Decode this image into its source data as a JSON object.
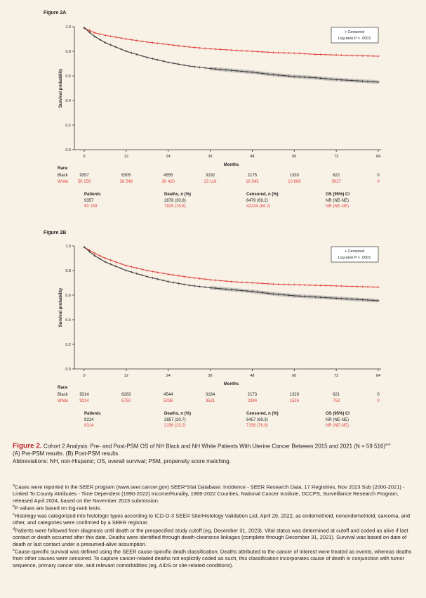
{
  "colors": {
    "black_series": "#3a3a3a",
    "white_series": "#e0413c",
    "background": "#f7f1e6",
    "caption_accent": "#c0282d"
  },
  "panels": [
    {
      "label": "Figure 2A",
      "legend": {
        "line1": "+ Censored",
        "line2": "Log-rank P < .0001"
      },
      "risk": {
        "header": "Race",
        "rows": [
          {
            "name": "Black",
            "values": [
              "9357",
              "6305",
              "4555",
              "3192",
              "2175",
              "1330",
              "622",
              "0"
            ]
          },
          {
            "name": "White",
            "values": [
              "50 159",
              "38 548",
              "30 420",
              "23 116",
              "16 545",
              "10 608",
              "5027",
              "0"
            ]
          }
        ]
      },
      "stats": {
        "headers": [
          "Patients",
          "Deaths, n (%)",
          "Censored, n (%)",
          "OS (95%) CI"
        ],
        "rows": [
          [
            "9357",
            "2878 (30.8)",
            "6479 (69.2)",
            "NR (NE-NE)"
          ],
          [
            "50 159",
            "7925 (15.8)",
            "42234 (84.2)",
            "NR (NE-NE)"
          ]
        ]
      }
    },
    {
      "label": "Figure 2B",
      "legend": {
        "line1": "+ Censored",
        "line2": "Log-rank P < .0001"
      },
      "risk": {
        "header": "Race",
        "rows": [
          {
            "name": "Black",
            "values": [
              "9314",
              "6283",
              "4544",
              "3184",
              "2173",
              "1329",
              "621",
              "0"
            ]
          },
          {
            "name": "White",
            "values": [
              "9314",
              "6750",
              "5036",
              "3531",
              "2394",
              "1526",
              "753",
              "0"
            ]
          }
        ]
      },
      "stats": {
        "headers": [
          "Patients",
          "Deaths, n (%)",
          "Censored, n (%)",
          "OS (95%) CI"
        ],
        "rows": [
          [
            "9314",
            "2857 (30.7)",
            "6457 (69.3)",
            "NR (NE-NE)"
          ],
          [
            "9314",
            "2156 (23.2)",
            "7158 (76.9)",
            "NR (NE-NE)"
          ]
        ]
      }
    }
  ],
  "chart_data": [
    {
      "type": "line",
      "title": "Figure 2A",
      "xlabel": "Months",
      "ylabel": "Survival probability",
      "xlim": [
        0,
        84
      ],
      "ylim": [
        0,
        1.0
      ],
      "xticks": [
        "0",
        "12",
        "24",
        "36",
        "48",
        "60",
        "72",
        "84"
      ],
      "yticks": [
        "0.0",
        "0.2",
        "0.4",
        "0.6",
        "0.8",
        "1.0"
      ],
      "series": [
        {
          "name": "White",
          "x": [
            0,
            3,
            6,
            12,
            18,
            24,
            30,
            36,
            42,
            48,
            54,
            60,
            66,
            72,
            78,
            84
          ],
          "y": [
            0.99,
            0.95,
            0.93,
            0.9,
            0.875,
            0.855,
            0.835,
            0.82,
            0.81,
            0.8,
            0.79,
            0.785,
            0.775,
            0.77,
            0.765,
            0.76
          ]
        },
        {
          "name": "Black",
          "x": [
            0,
            3,
            6,
            12,
            18,
            24,
            30,
            36,
            42,
            48,
            54,
            60,
            66,
            72,
            78,
            84
          ],
          "y": [
            0.99,
            0.92,
            0.87,
            0.8,
            0.75,
            0.71,
            0.68,
            0.66,
            0.645,
            0.63,
            0.61,
            0.595,
            0.585,
            0.57,
            0.56,
            0.55
          ]
        }
      ]
    },
    {
      "type": "line",
      "title": "Figure 2B",
      "xlabel": "Months",
      "ylabel": "Survival probability",
      "xlim": [
        0,
        84
      ],
      "ylim": [
        0,
        1.0
      ],
      "xticks": [
        "0",
        "12",
        "24",
        "36",
        "48",
        "60",
        "72",
        "84"
      ],
      "yticks": [
        "0.0",
        "0.2",
        "0.4",
        "0.6",
        "0.8",
        "1.0"
      ],
      "series": [
        {
          "name": "White",
          "x": [
            0,
            3,
            6,
            12,
            18,
            24,
            30,
            36,
            42,
            48,
            54,
            60,
            66,
            72,
            78,
            84
          ],
          "y": [
            0.99,
            0.94,
            0.9,
            0.84,
            0.8,
            0.77,
            0.745,
            0.725,
            0.71,
            0.7,
            0.69,
            0.685,
            0.68,
            0.675,
            0.67,
            0.665
          ]
        },
        {
          "name": "Black",
          "x": [
            0,
            3,
            6,
            12,
            18,
            24,
            30,
            36,
            42,
            48,
            54,
            60,
            66,
            72,
            78,
            84
          ],
          "y": [
            0.99,
            0.92,
            0.87,
            0.8,
            0.75,
            0.71,
            0.68,
            0.66,
            0.645,
            0.63,
            0.61,
            0.595,
            0.585,
            0.575,
            0.565,
            0.555
          ]
        }
      ]
    }
  ],
  "caption": {
    "figure": "Figure 2.",
    "title": "Cohort 2 Analysis: Pre- and Post-PSM OS of NH Black and NH White Patients With Uterine Cancer Between 2015 and 2021 (N = 59 516)",
    "title_marks": "a-e",
    "line2": "(A) Pre-PSM results. (B) Post-PSM results.",
    "line3": "Abbreviations: NH, non-Hispanic; OS, overall survival; PSM, propensity score matching."
  },
  "footnotes": [
    {
      "mark": "a",
      "text": "Cases were reported in the SEER program (www.seer.cancer.gov) SEER*Stat Database: Incidence - SEER Research Data, 17 Registries, Nov 2023 Sub (2000-2021) - Linked To County Attributes - Time Dependent (1990-2022) Income/Rurality, 1969-2022 Counties, National Cancer Institute, DCCPS, Surveillance Research Program, released April 2024, based on the November 2023 submission."
    },
    {
      "mark": "b",
      "text": "P values are based on log-rank tests."
    },
    {
      "mark": "c",
      "text": "Histology was categorized into histologic types according to ICD-O-3 SEER Site/Histology Validation List, April 29, 2022, as endometrioid, nonendometrioid, sarcoma, and other, and categories were confirmed by a SEER registrar."
    },
    {
      "mark": "d",
      "text": "Patients were followed from diagnosis until death or the prespecified study cutoff (eg, December 31, 2023). Vital status was determined at cutoff and coded as alive if last contact or death occurred after this date. Deaths were identified through death-clearance linkages (complete through December 31, 2021). Survival was based on date of death or last contact under a presumed-alive assumption."
    },
    {
      "mark": "e",
      "text": "Cause-specific survival was defined using the SEER cause-specific death classification. Deaths attributed to the cancer of interest were treated as events, whereas deaths from other causes were censored. To capture cancer-related deaths not explicitly coded as such, this classification incorporates cause of death in conjunction with tumor sequence, primary cancer site, and relevant comorbidities (eg, AIDS or site-related conditions)."
    }
  ]
}
